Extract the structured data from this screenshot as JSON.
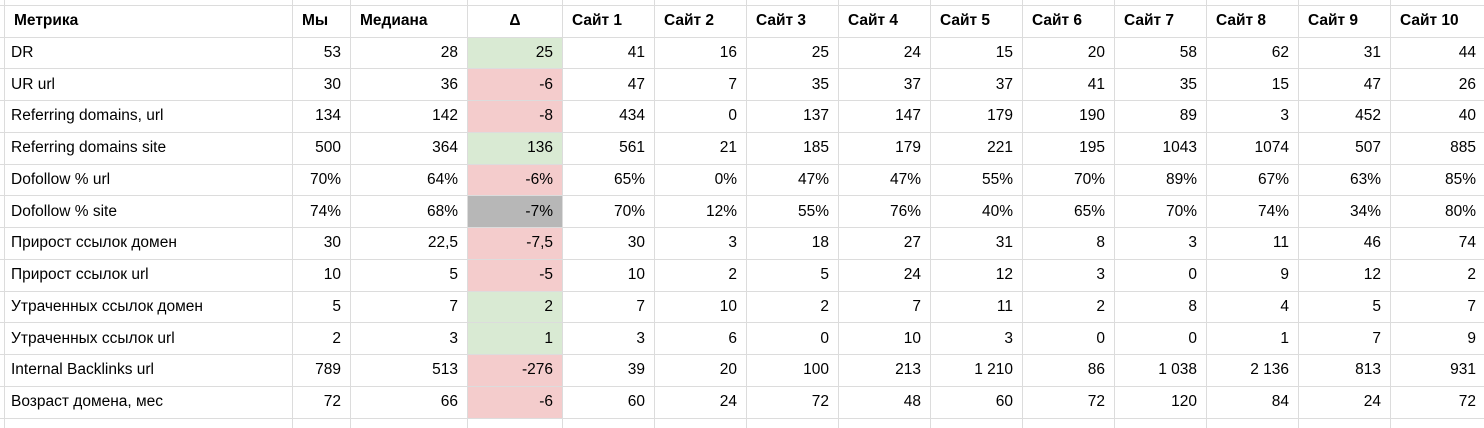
{
  "table": {
    "headers": [
      "Метрика",
      "Мы",
      "Медиана",
      "Δ",
      "Сайт 1",
      "Сайт 2",
      "Сайт 3",
      "Сайт 4",
      "Сайт 5",
      "Сайт 6",
      "Сайт 7",
      "Сайт 8",
      "Сайт 9",
      "Сайт 10"
    ],
    "rows": [
      {
        "metric": "DR",
        "we": "53",
        "median": "28",
        "delta": "25",
        "delta_color": "positive",
        "sites": [
          "41",
          "16",
          "25",
          "24",
          "15",
          "20",
          "58",
          "62",
          "31",
          "44"
        ]
      },
      {
        "metric": "UR url",
        "we": "30",
        "median": "36",
        "delta": "-6",
        "delta_color": "negative",
        "sites": [
          "47",
          "7",
          "35",
          "37",
          "37",
          "41",
          "35",
          "15",
          "47",
          "26"
        ]
      },
      {
        "metric": "Referring domains, url",
        "we": "134",
        "median": "142",
        "delta": "-8",
        "delta_color": "negative",
        "sites": [
          "434",
          "0",
          "137",
          "147",
          "179",
          "190",
          "89",
          "3",
          "452",
          "40"
        ]
      },
      {
        "metric": "Referring domains site",
        "we": "500",
        "median": "364",
        "delta": "136",
        "delta_color": "positive",
        "sites": [
          "561",
          "21",
          "185",
          "179",
          "221",
          "195",
          "1043",
          "1074",
          "507",
          "885"
        ]
      },
      {
        "metric": "Dofollow % url",
        "we": "70%",
        "median": "64%",
        "delta": "-6%",
        "delta_color": "negative",
        "sites": [
          "65%",
          "0%",
          "47%",
          "47%",
          "55%",
          "70%",
          "89%",
          "67%",
          "63%",
          "85%"
        ]
      },
      {
        "metric": "Dofollow % site",
        "we": "74%",
        "median": "68%",
        "delta": "-7%",
        "delta_color": "neutral",
        "sites": [
          "70%",
          "12%",
          "55%",
          "76%",
          "40%",
          "65%",
          "70%",
          "74%",
          "34%",
          "80%"
        ]
      },
      {
        "metric": "Прирост ссылок домен",
        "we": "30",
        "median": "22,5",
        "delta": "-7,5",
        "delta_color": "negative",
        "sites": [
          "30",
          "3",
          "18",
          "27",
          "31",
          "8",
          "3",
          "11",
          "46",
          "74"
        ]
      },
      {
        "metric": "Прирост ссылок url",
        "we": "10",
        "median": "5",
        "delta": "-5",
        "delta_color": "negative",
        "sites": [
          "10",
          "2",
          "5",
          "24",
          "12",
          "3",
          "0",
          "9",
          "12",
          "2"
        ]
      },
      {
        "metric": "Утраченных ссылок домен",
        "we": "5",
        "median": "7",
        "delta": "2",
        "delta_color": "positive",
        "sites": [
          "7",
          "10",
          "2",
          "7",
          "11",
          "2",
          "8",
          "4",
          "5",
          "7"
        ]
      },
      {
        "metric": "Утраченных ссылок url",
        "we": "2",
        "median": "3",
        "delta": "1",
        "delta_color": "positive",
        "sites": [
          "3",
          "6",
          "0",
          "10",
          "3",
          "0",
          "0",
          "1",
          "7",
          "9"
        ]
      },
      {
        "metric": "Internal Backlinks url",
        "we": "789",
        "median": "513",
        "delta": "-276",
        "delta_color": "negative",
        "sites": [
          "39",
          "20",
          "100",
          "213",
          "1 210",
          "86",
          "1 038",
          "2 136",
          "813",
          "931"
        ]
      },
      {
        "metric": "Возраст домена, мес",
        "we": "72",
        "median": "66",
        "delta": "-6",
        "delta_color": "negative",
        "sites": [
          "60",
          "24",
          "72",
          "48",
          "60",
          "72",
          "120",
          "84",
          "24",
          "72"
        ]
      }
    ]
  },
  "colors": {
    "delta_positive_bg": "#d9ead3",
    "delta_negative_bg": "#f4cccc",
    "delta_neutral_bg": "#b7b7b7",
    "gridline": "#dcdcdc",
    "text": "#000000",
    "background": "#ffffff"
  }
}
